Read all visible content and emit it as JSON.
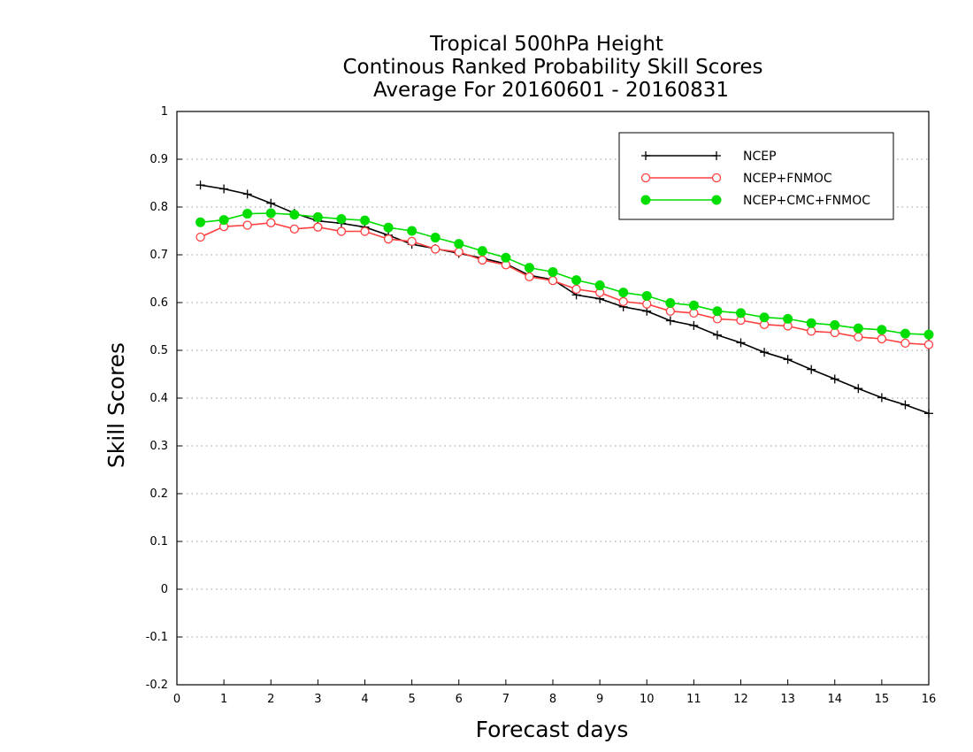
{
  "chart_data": {
    "type": "line",
    "title": [
      "Tropical 500hPa Height",
      "Continous Ranked Probability Skill Scores",
      "Average For 20160601 - 20160831"
    ],
    "xlabel": "Forecast days",
    "ylabel": "Skill Scores",
    "xlim": [
      0,
      16
    ],
    "ylim": [
      -0.2,
      1
    ],
    "xticks": [
      0,
      1,
      2,
      3,
      4,
      5,
      6,
      7,
      8,
      9,
      10,
      11,
      12,
      13,
      14,
      15,
      16
    ],
    "yticks": [
      -0.2,
      -0.1,
      0,
      0.1,
      0.2,
      0.3,
      0.4,
      0.5,
      0.6,
      0.7,
      0.8,
      0.9,
      1
    ],
    "ytick_labels": [
      "-0.2",
      "-0.1",
      "0",
      "0.1",
      "0.2",
      "0.3",
      "0.4",
      "0.5",
      "0.6",
      "0.7",
      "0.8",
      "0.9",
      "1"
    ],
    "grid": "horizontal-dotted",
    "legend_position": "top-right",
    "x": [
      0.5,
      1,
      1.5,
      2,
      2.5,
      3,
      3.5,
      4,
      4.5,
      5,
      5.5,
      6,
      6.5,
      7,
      7.5,
      8,
      8.5,
      9,
      9.5,
      10,
      10.5,
      11,
      11.5,
      12,
      12.5,
      13,
      13.5,
      14,
      14.5,
      15,
      15.5,
      16
    ],
    "series": [
      {
        "name": "NCEP",
        "color": "#000000",
        "marker": "plus",
        "values": [
          0.846,
          0.838,
          0.827,
          0.808,
          0.787,
          0.771,
          0.766,
          0.758,
          0.741,
          0.722,
          0.713,
          0.703,
          0.693,
          0.681,
          0.657,
          0.648,
          0.616,
          0.608,
          0.591,
          0.582,
          0.562,
          0.552,
          0.532,
          0.516,
          0.496,
          0.481,
          0.46,
          0.44,
          0.42,
          0.401,
          0.386,
          0.368
        ]
      },
      {
        "name": "NCEP+FNMOC",
        "color": "#ff4040",
        "marker": "open-circle",
        "values": [
          0.737,
          0.759,
          0.762,
          0.767,
          0.754,
          0.758,
          0.749,
          0.749,
          0.733,
          0.728,
          0.712,
          0.706,
          0.689,
          0.679,
          0.654,
          0.646,
          0.628,
          0.621,
          0.602,
          0.597,
          0.582,
          0.578,
          0.566,
          0.563,
          0.554,
          0.551,
          0.54,
          0.537,
          0.528,
          0.524,
          0.515,
          0.512
        ]
      },
      {
        "name": "NCEP+CMC+FNMOC",
        "color": "#00dd00",
        "marker": "filled-circle",
        "values": [
          0.768,
          0.773,
          0.786,
          0.787,
          0.784,
          0.779,
          0.775,
          0.772,
          0.757,
          0.75,
          0.736,
          0.723,
          0.708,
          0.694,
          0.673,
          0.664,
          0.647,
          0.636,
          0.621,
          0.614,
          0.599,
          0.594,
          0.582,
          0.578,
          0.569,
          0.566,
          0.557,
          0.553,
          0.546,
          0.543,
          0.535,
          0.533
        ]
      }
    ]
  }
}
